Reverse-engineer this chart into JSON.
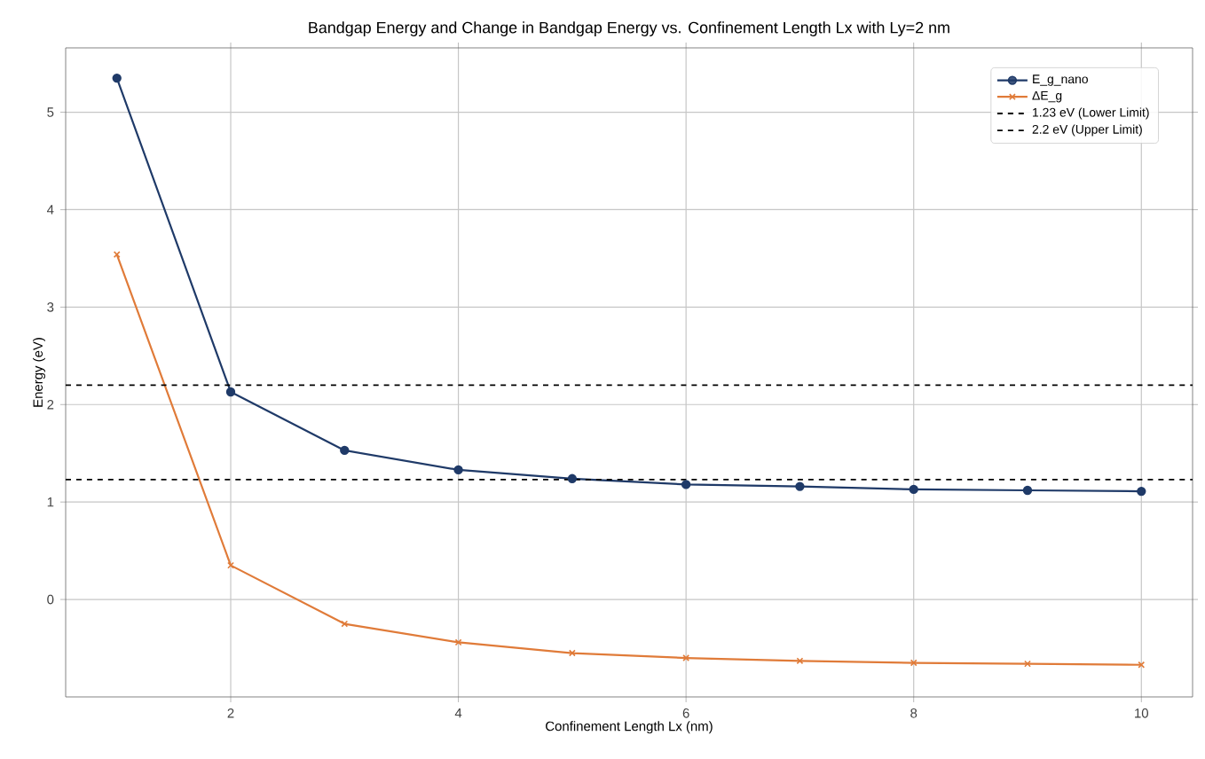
{
  "chart_data": {
    "type": "line",
    "title": "Bandgap Energy and Change in Bandgap Energy vs. Confinement Length Lx with Ly=2 nm",
    "xlabel": "Confinement Length Lx (nm)",
    "ylabel": "Energy (eV)",
    "x": [
      1,
      2,
      3,
      4,
      5,
      6,
      7,
      8,
      9,
      10
    ],
    "series": [
      {
        "name": "E_g_nano",
        "color": "#1f3a68",
        "marker": "circle",
        "values": [
          5.35,
          2.13,
          1.53,
          1.33,
          1.24,
          1.18,
          1.16,
          1.13,
          1.12,
          1.11
        ]
      },
      {
        "name": "ΔE_g",
        "color": "#e07b39",
        "marker": "cross",
        "values": [
          3.54,
          0.35,
          -0.25,
          -0.44,
          -0.55,
          -0.6,
          -0.63,
          -0.65,
          -0.66,
          -0.67
        ]
      }
    ],
    "ref_lines": [
      {
        "axis": "y",
        "value": 1.23,
        "label": "1.23 eV (Lower Limit)",
        "color": "#000000",
        "line_style": "dashed"
      },
      {
        "axis": "y",
        "value": 2.2,
        "label": "2.2 eV (Upper Limit)",
        "color": "#000000",
        "line_style": "dashed"
      }
    ],
    "xlim": [
      0.55,
      10.45
    ],
    "ylim": [
      -1.0,
      5.66
    ],
    "xticks": [
      2,
      4,
      6,
      8,
      10
    ],
    "yticks": [
      0,
      1,
      2,
      3,
      4,
      5
    ],
    "grid": true,
    "legend": "top right",
    "line_style": "solid"
  }
}
